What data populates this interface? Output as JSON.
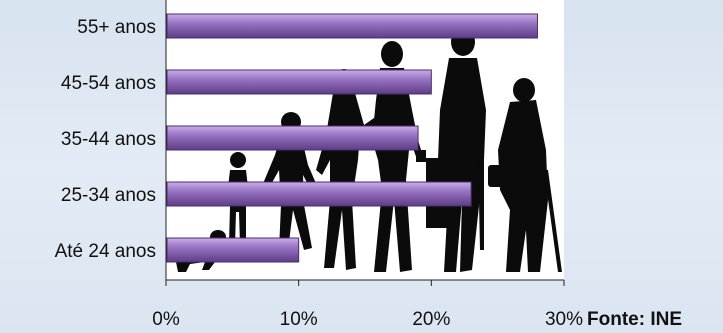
{
  "chart_data": {
    "type": "bar",
    "orientation": "horizontal",
    "categories": [
      "55+ anos",
      "45-54 anos",
      "35-44 anos",
      "25-34 anos",
      "Até 24 anos"
    ],
    "values": [
      28,
      20,
      19,
      23,
      10
    ],
    "xlim": [
      0,
      30
    ],
    "xticks": [
      0,
      10,
      20,
      30
    ],
    "tick_labels": [
      "0%",
      "10%",
      "20%",
      "30%"
    ],
    "bar_color": "#9a74c4",
    "grid": false
  },
  "source": "Fonte: INE"
}
